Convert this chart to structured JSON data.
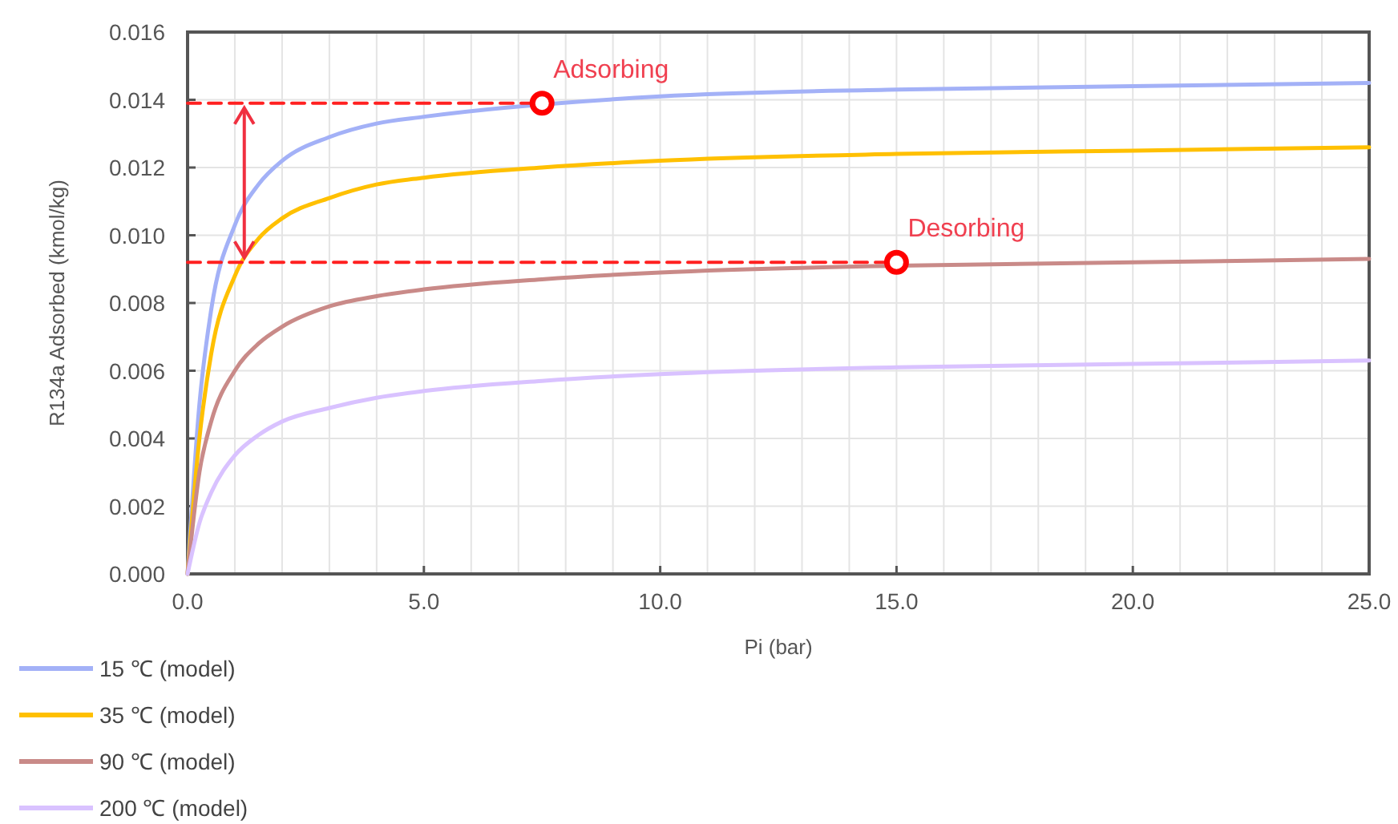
{
  "chart_data": {
    "type": "line",
    "xlabel": "Pi (bar)",
    "ylabel": "R134a Adsorbed (kmol/kg)",
    "xlim": [
      0,
      25
    ],
    "ylim": [
      0,
      0.016
    ],
    "xticks": [
      {
        "value": 0,
        "label": "0.0"
      },
      {
        "value": 1,
        "label": null
      },
      {
        "value": 2,
        "label": null
      },
      {
        "value": 3,
        "label": null
      },
      {
        "value": 4,
        "label": null
      },
      {
        "value": 5,
        "label": "5.0"
      },
      {
        "value": 6,
        "label": null
      },
      {
        "value": 7,
        "label": null
      },
      {
        "value": 8,
        "label": null
      },
      {
        "value": 9,
        "label": null
      },
      {
        "value": 10,
        "label": "10.0"
      },
      {
        "value": 11,
        "label": null
      },
      {
        "value": 12,
        "label": null
      },
      {
        "value": 13,
        "label": null
      },
      {
        "value": 14,
        "label": null
      },
      {
        "value": 15,
        "label": "15.0"
      },
      {
        "value": 16,
        "label": null
      },
      {
        "value": 17,
        "label": null
      },
      {
        "value": 18,
        "label": null
      },
      {
        "value": 19,
        "label": null
      },
      {
        "value": 20,
        "label": "20.0"
      },
      {
        "value": 21,
        "label": null
      },
      {
        "value": 22,
        "label": null
      },
      {
        "value": 23,
        "label": null
      },
      {
        "value": 24,
        "label": null
      },
      {
        "value": 25,
        "label": "25.0"
      }
    ],
    "yticks": [
      {
        "value": 0,
        "label": "0.000"
      },
      {
        "value": 0.002,
        "label": "0.002"
      },
      {
        "value": 0.004,
        "label": "0.004"
      },
      {
        "value": 0.006,
        "label": "0.006"
      },
      {
        "value": 0.008,
        "label": "0.008"
      },
      {
        "value": 0.01,
        "label": "0.010"
      },
      {
        "value": 0.012,
        "label": "0.012"
      },
      {
        "value": 0.014,
        "label": "0.014"
      },
      {
        "value": 0.016,
        "label": "0.016"
      }
    ],
    "grid": true,
    "legend": "bottom left",
    "marker": "none",
    "line_style": "solid",
    "x": [
      0,
      0.25,
      0.5,
      1,
      1.5,
      2,
      3,
      4,
      5,
      7.5,
      10,
      15,
      20,
      25
    ],
    "series": [
      {
        "name": "15 ℃ (model)",
        "color": "#a3b1f7",
        "values": [
          0,
          0.005,
          0.0078,
          0.0103,
          0.0115,
          0.0122,
          0.0129,
          0.0133,
          0.0135,
          null,
          0.0141,
          0.0143,
          0.0144,
          0.0145
        ]
      },
      {
        "name": "35 ℃ (model)",
        "color": "#ffc000",
        "values": [
          0,
          0.004,
          0.0065,
          0.0088,
          0.0099,
          0.0105,
          0.0111,
          0.0115,
          0.0117,
          0.012,
          0.0122,
          0.0124,
          0.0125,
          0.0126
        ]
      },
      {
        "name": "90 ℃ (model)",
        "color": "#c98a88",
        "values": [
          0,
          0.003,
          0.0045,
          0.006,
          0.0068,
          0.0073,
          0.0079,
          0.0082,
          0.0084,
          0.0087,
          0.0089,
          0.0091,
          0.0092,
          0.0093
        ]
      },
      {
        "name": "200 ℃ (model)",
        "color": "#d9c2ff",
        "values": [
          0,
          0.0015,
          0.0024,
          0.0035,
          0.0041,
          0.0045,
          0.0049,
          0.0052,
          0.0054,
          0.0057,
          0.0059,
          0.0061,
          0.0062,
          0.0063
        ]
      },
      {
        "type": "line",
        "color": "#ff2020",
        "line_style": "dashed",
        "x": [
          0,
          7.5
        ],
        "values": [
          0.0139,
          0.0139
        ]
      },
      {
        "type": "line",
        "color": "#ff2020",
        "line_style": "dashed",
        "x": [
          0,
          15
        ],
        "values": [
          0.0092,
          0.0092
        ]
      },
      {
        "type": "scatter",
        "color": "#ff0000",
        "marker": "circle",
        "x": [
          7.5,
          15
        ],
        "values": [
          0.0139,
          0.0092
        ]
      }
    ],
    "annotations": [
      {
        "text": "Adsorbing",
        "x": 7.5,
        "y": 0.0139
      },
      {
        "text": "Desorbing",
        "x": 15,
        "y": 0.0092
      }
    ]
  }
}
